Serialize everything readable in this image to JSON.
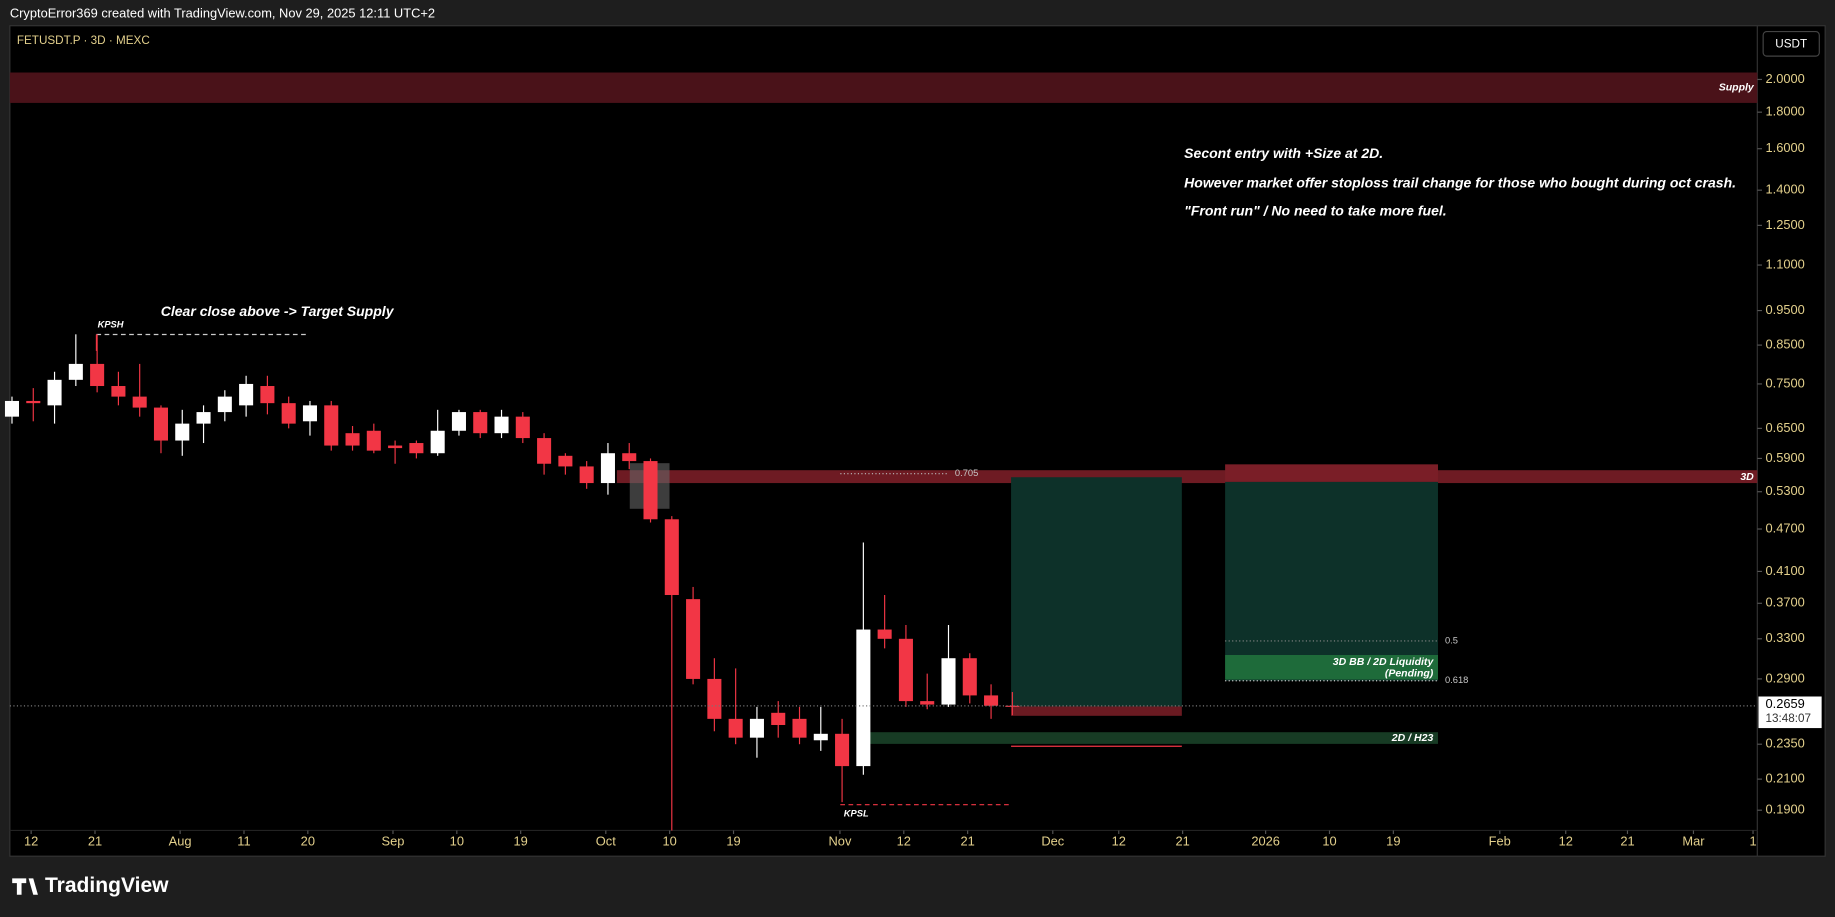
{
  "header": {
    "author_line": "CryptoError369 created with TradingView.com, Nov 29, 2025 12:11 UTC+2",
    "symbol": "FETUSDT.P · 3D · MEXC",
    "currency_button": "USDT"
  },
  "footer": {
    "brand": "TradingView"
  },
  "chart_data": {
    "type": "candlestick",
    "categories": [
      null,
      null,
      null,
      null,
      null,
      null,
      null,
      null,
      null,
      null,
      null,
      null,
      null,
      null,
      null,
      null,
      null,
      null,
      null,
      null,
      null,
      null,
      null,
      null,
      null,
      null,
      null,
      null,
      null,
      null,
      null,
      null,
      null,
      null,
      null,
      null,
      null,
      null,
      null,
      null,
      null,
      null,
      null,
      null,
      null,
      null,
      null,
      null
    ],
    "open": [
      0.675,
      0.71,
      0.7,
      0.76,
      0.8,
      0.745,
      0.72,
      0.695,
      0.625,
      0.66,
      0.685,
      0.7,
      0.745,
      0.705,
      0.665,
      0.7,
      0.64,
      0.645,
      0.615,
      0.62,
      0.6,
      0.645,
      0.685,
      0.64,
      0.675,
      0.63,
      0.595,
      0.575,
      0.545,
      0.6,
      0.585,
      0.485,
      0.375,
      0.29,
      0.255,
      0.24,
      0.26,
      0.255,
      0.238,
      0.243,
      0.219,
      0.34,
      0.33,
      0.27,
      0.267,
      0.31,
      0.275,
      0.266
    ],
    "high": [
      0.72,
      0.74,
      0.78,
      0.88,
      0.88,
      0.78,
      0.8,
      0.7,
      0.69,
      0.7,
      0.735,
      0.77,
      0.77,
      0.72,
      0.71,
      0.71,
      0.655,
      0.66,
      0.625,
      0.625,
      0.69,
      0.69,
      0.69,
      0.69,
      0.685,
      0.64,
      0.6,
      0.585,
      0.62,
      0.62,
      0.59,
      0.49,
      0.39,
      0.31,
      0.3,
      0.265,
      0.27,
      0.265,
      0.265,
      0.255,
      0.45,
      0.38,
      0.345,
      0.295,
      0.345,
      0.315,
      0.285,
      0.278
    ],
    "low": [
      0.66,
      0.665,
      0.66,
      0.745,
      0.73,
      0.7,
      0.675,
      0.6,
      0.595,
      0.62,
      0.665,
      0.675,
      0.68,
      0.65,
      0.635,
      0.605,
      0.605,
      0.6,
      0.58,
      0.59,
      0.595,
      0.635,
      0.63,
      0.63,
      0.62,
      0.56,
      0.56,
      0.535,
      0.525,
      0.57,
      0.48,
      0.178,
      0.285,
      0.245,
      0.235,
      0.225,
      0.24,
      0.235,
      0.23,
      0.195,
      0.213,
      0.32,
      0.265,
      0.263,
      0.265,
      0.268,
      0.255,
      0.258
    ],
    "close": [
      0.71,
      0.705,
      0.76,
      0.8,
      0.745,
      0.72,
      0.695,
      0.625,
      0.66,
      0.685,
      0.72,
      0.75,
      0.705,
      0.66,
      0.7,
      0.615,
      0.615,
      0.605,
      0.61,
      0.6,
      0.645,
      0.685,
      0.64,
      0.675,
      0.63,
      0.58,
      0.575,
      0.545,
      0.6,
      0.585,
      0.485,
      0.38,
      0.29,
      0.255,
      0.24,
      0.255,
      0.25,
      0.24,
      0.243,
      0.219,
      0.34,
      0.33,
      0.27,
      0.267,
      0.31,
      0.275,
      0.266,
      0.2659
    ],
    "up_color": "#ffffff",
    "down_color": "#f23645",
    "log_scale": true,
    "ylim": [
      0.178,
      2.36
    ],
    "yticks": [
      {
        "value": 2,
        "label": "2.0000"
      },
      {
        "value": 1.8,
        "label": "1.8000"
      },
      {
        "value": 1.6,
        "label": "1.6000"
      },
      {
        "value": 1.4,
        "label": "1.4000"
      },
      {
        "value": 1.25,
        "label": "1.2500"
      },
      {
        "value": 1.1,
        "label": "1.1000"
      },
      {
        "value": 0.95,
        "label": "0.9500"
      },
      {
        "value": 0.85,
        "label": "0.8500"
      },
      {
        "value": 0.75,
        "label": "0.7500"
      },
      {
        "value": 0.65,
        "label": "0.6500"
      },
      {
        "value": 0.59,
        "label": "0.5900"
      },
      {
        "value": 0.53,
        "label": "0.5300"
      },
      {
        "value": 0.47,
        "label": "0.4700"
      },
      {
        "value": 0.41,
        "label": "0.4100"
      },
      {
        "value": 0.37,
        "label": "0.3700"
      },
      {
        "value": 0.33,
        "label": "0.3300"
      },
      {
        "value": 0.29,
        "label": "0.2900"
      },
      {
        "value": 0.235,
        "label": "0.2350"
      },
      {
        "value": 0.21,
        "label": "0.2100"
      },
      {
        "value": 0.19,
        "label": "0.1900"
      }
    ],
    "xlim": [
      -0.1,
      82
    ],
    "xticks": [
      {
        "value": 0.9,
        "label": "12"
      },
      {
        "value": 3.9,
        "label": "21"
      },
      {
        "value": 7.9,
        "label": "Aug"
      },
      {
        "value": 10.9,
        "label": "11"
      },
      {
        "value": 13.9,
        "label": "20"
      },
      {
        "value": 17.9,
        "label": "Sep"
      },
      {
        "value": 20.9,
        "label": "10"
      },
      {
        "value": 23.9,
        "label": "19"
      },
      {
        "value": 27.9,
        "label": "Oct"
      },
      {
        "value": 30.9,
        "label": "10"
      },
      {
        "value": 33.9,
        "label": "19"
      },
      {
        "value": 38.9,
        "label": "Nov"
      },
      {
        "value": 41.9,
        "label": "12"
      },
      {
        "value": 44.9,
        "label": "21"
      },
      {
        "value": 48.9,
        "label": "Dec"
      },
      {
        "value": 52,
        "label": "12"
      },
      {
        "value": 55,
        "label": "21"
      },
      {
        "value": 58.9,
        "label": "2026"
      },
      {
        "value": 61.9,
        "label": "10"
      },
      {
        "value": 64.9,
        "label": "19"
      },
      {
        "value": 69.9,
        "label": "Feb"
      },
      {
        "value": 73,
        "label": "12"
      },
      {
        "value": 75.9,
        "label": "21"
      },
      {
        "value": 79,
        "label": "Mar"
      },
      {
        "value": 81.8,
        "label": "1"
      }
    ],
    "last_price": 0.2659,
    "countdown": "13:48:07",
    "annotations": {
      "supply": "Supply",
      "zone_3d": "3D",
      "level_0705": "0.705",
      "fib_05": "0.5",
      "fib_0618": "0.618",
      "liquidity_1": "3D BB / 2D Liquidity",
      "liquidity_2": "(Pending)",
      "zone_2d": "2D / H23",
      "kpsh": "KPSH",
      "kpsl": "KPSL",
      "target_note": "Clear close above -> Target Supply",
      "notes": [
        "Secont entry with +Size at 2D.",
        "However market offer stoploss trail change for those who bought during oct crash.",
        "\"Front run\" / No need to take more fuel."
      ]
    }
  }
}
